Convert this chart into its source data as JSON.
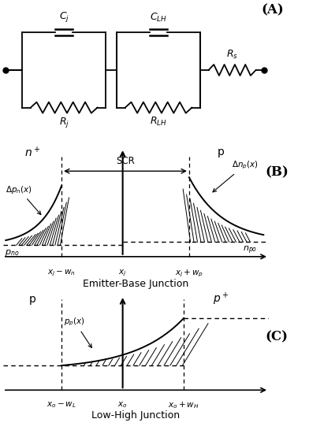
{
  "fig_width": 3.92,
  "fig_height": 5.46,
  "dpi": 100,
  "panel_A_label": "(A)",
  "panel_B_label": "(B)",
  "panel_C_label": "(C)",
  "bg_color": "#ffffff",
  "line_color": "#000000"
}
